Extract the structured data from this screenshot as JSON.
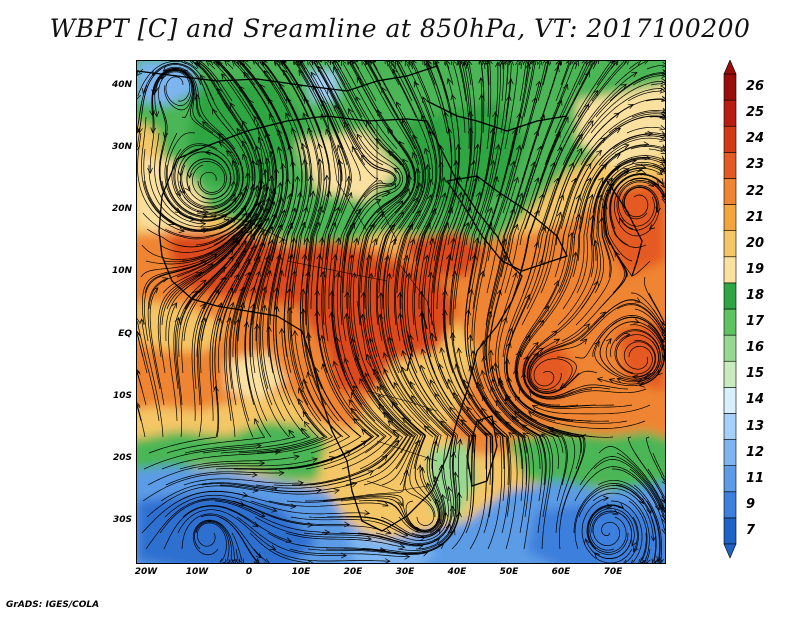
{
  "title": "WBPT [C] and Sreamline at 850hPa, VT: 2017100200",
  "credit": "GrADS: IGES/COLA",
  "lat_labels": [
    "40N",
    "30N",
    "20N",
    "10N",
    "EQ",
    "10S",
    "20S",
    "30S"
  ],
  "lon_labels": [
    "20W",
    "10W",
    "0",
    "10E",
    "20E",
    "30E",
    "40E",
    "50E",
    "60E",
    "70E"
  ],
  "colorbar": {
    "labels": [
      "7",
      "9",
      "11",
      "12",
      "13",
      "14",
      "15",
      "16",
      "17",
      "18",
      "19",
      "20",
      "21",
      "22",
      "23",
      "24",
      "25",
      "26"
    ],
    "colors": [
      "#1f63c8",
      "#3d7fdc",
      "#5c9be6",
      "#7db5f0",
      "#a5d0f7",
      "#d8f0fb",
      "#c8ecbe",
      "#97d992",
      "#5fc35f",
      "#2ea643",
      "#fae1a0",
      "#f5c665",
      "#f4a63e",
      "#ef8530",
      "#e55a24",
      "#d23a17",
      "#b81d0f",
      "#9a0e0a"
    ]
  },
  "map_colors": {
    "warm_red": "#dd4a1e",
    "orange": "#ef8530",
    "tan": "#f5c665",
    "pale": "#fae1a0",
    "green": "#4bb655",
    "light_green": "#97d992",
    "blue": "#5c9be6",
    "deep_blue": "#2f6fd0",
    "streamline": "#000000"
  }
}
